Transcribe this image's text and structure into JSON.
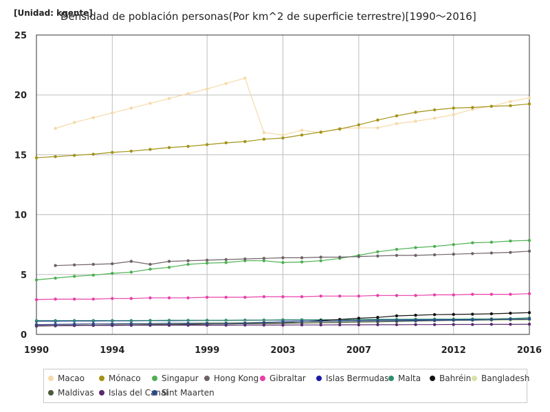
{
  "header": {
    "unit": "[Unidad: kgente]",
    "title": "Densidad de población personas(Por km^2 de superficie terrestre)[1990～2016]"
  },
  "chart_data": {
    "type": "line",
    "x_ticks": [
      1990,
      1994,
      1999,
      2003,
      2007,
      2012,
      2016
    ],
    "y_ticks": [
      0,
      5,
      10,
      15,
      20,
      25
    ],
    "xlim": [
      1990,
      2016
    ],
    "ylim": [
      0,
      25
    ],
    "grid": true,
    "legend_position": "bottom",
    "series": [
      {
        "name": "Macao",
        "color": "#f5d9a8",
        "x": [
          1991,
          1992,
          1993,
          1994,
          1995,
          1996,
          1997,
          1998,
          1999,
          2000,
          2001,
          2002,
          2003,
          2004,
          2005,
          2006,
          2007,
          2008,
          2009,
          2010,
          2011,
          2012,
          2013,
          2014,
          2015,
          2016
        ],
        "y": [
          17.2,
          17.7,
          18.1,
          18.5,
          18.9,
          19.3,
          19.7,
          20.1,
          20.5,
          20.95,
          21.4,
          16.85,
          16.65,
          17.05,
          16.85,
          17.2,
          17.25,
          17.25,
          17.6,
          17.8,
          18.05,
          18.35,
          18.8,
          19.05,
          19.45,
          19.75
        ]
      },
      {
        "name": "Mónaco",
        "color": "#a39215",
        "x": [
          1990,
          1991,
          1992,
          1993,
          1994,
          1995,
          1996,
          1997,
          1998,
          1999,
          2000,
          2001,
          2002,
          2003,
          2004,
          2005,
          2006,
          2007,
          2008,
          2009,
          2010,
          2011,
          2012,
          2013,
          2014,
          2015,
          2016
        ],
        "y": [
          14.75,
          14.85,
          14.95,
          15.05,
          15.2,
          15.3,
          15.45,
          15.6,
          15.7,
          15.85,
          16.0,
          16.1,
          16.3,
          16.4,
          16.65,
          16.9,
          17.15,
          17.5,
          17.9,
          18.25,
          18.55,
          18.75,
          18.9,
          18.95,
          19.05,
          19.1,
          19.25
        ]
      },
      {
        "name": "Singapur",
        "color": "#4caf50",
        "x": [
          1990,
          1991,
          1992,
          1993,
          1994,
          1995,
          1996,
          1997,
          1998,
          1999,
          2000,
          2001,
          2002,
          2003,
          2004,
          2005,
          2006,
          2007,
          2008,
          2009,
          2010,
          2011,
          2012,
          2013,
          2014,
          2015,
          2016
        ],
        "y": [
          4.55,
          4.7,
          4.85,
          4.95,
          5.1,
          5.2,
          5.45,
          5.6,
          5.85,
          5.95,
          6.0,
          6.15,
          6.15,
          6.0,
          6.05,
          6.15,
          6.35,
          6.6,
          6.9,
          7.1,
          7.25,
          7.35,
          7.5,
          7.65,
          7.7,
          7.8,
          7.85
        ]
      },
      {
        "name": "Hong Kong",
        "color": "#6e6268",
        "x": [
          1991,
          1992,
          1993,
          1994,
          1995,
          1996,
          1997,
          1998,
          1999,
          2000,
          2001,
          2002,
          2003,
          2004,
          2005,
          2006,
          2007,
          2008,
          2009,
          2010,
          2011,
          2012,
          2013,
          2014,
          2015,
          2016
        ],
        "y": [
          5.75,
          5.8,
          5.85,
          5.9,
          6.1,
          5.85,
          6.1,
          6.15,
          6.2,
          6.25,
          6.3,
          6.35,
          6.4,
          6.4,
          6.45,
          6.45,
          6.5,
          6.55,
          6.6,
          6.6,
          6.65,
          6.7,
          6.75,
          6.8,
          6.85,
          6.95
        ]
      },
      {
        "name": "Gibraltar",
        "color": "#e83fa8",
        "x": [
          1990,
          1991,
          1992,
          1993,
          1994,
          1995,
          1996,
          1997,
          1998,
          1999,
          2000,
          2001,
          2002,
          2003,
          2004,
          2005,
          2006,
          2007,
          2008,
          2009,
          2010,
          2011,
          2012,
          2013,
          2014,
          2015,
          2016
        ],
        "y": [
          2.9,
          2.95,
          2.95,
          2.95,
          3.0,
          3.0,
          3.05,
          3.05,
          3.05,
          3.1,
          3.1,
          3.1,
          3.15,
          3.15,
          3.15,
          3.2,
          3.2,
          3.2,
          3.25,
          3.25,
          3.25,
          3.3,
          3.3,
          3.35,
          3.35,
          3.35,
          3.4
        ]
      },
      {
        "name": "Islas Bermudas",
        "color": "#1a1aa6",
        "x": [
          1990,
          1991,
          1992,
          1993,
          1994,
          1995,
          1996,
          1997,
          1998,
          1999,
          2000,
          2001,
          2002,
          2003,
          2004,
          2005,
          2006,
          2007,
          2008,
          2009,
          2010,
          2011,
          2012,
          2013,
          2014,
          2015,
          2016
        ],
        "y": [
          1.1,
          1.1,
          1.12,
          1.12,
          1.13,
          1.13,
          1.15,
          1.15,
          1.16,
          1.17,
          1.17,
          1.18,
          1.19,
          1.2,
          1.2,
          1.21,
          1.21,
          1.22,
          1.22,
          1.22,
          1.22,
          1.22,
          1.23,
          1.23,
          1.23,
          1.23,
          1.23
        ]
      },
      {
        "name": "Malta",
        "color": "#2f8f6e",
        "x": [
          1990,
          1991,
          1992,
          1993,
          1994,
          1995,
          1996,
          1997,
          1998,
          1999,
          2000,
          2001,
          2002,
          2003,
          2004,
          2005,
          2006,
          2007,
          2008,
          2009,
          2010,
          2011,
          2012,
          2013,
          2014,
          2015,
          2016
        ],
        "y": [
          1.15,
          1.16,
          1.16,
          1.16,
          1.16,
          1.16,
          1.17,
          1.18,
          1.18,
          1.18,
          1.18,
          1.19,
          1.2,
          1.22,
          1.22,
          1.22,
          1.22,
          1.24,
          1.26,
          1.26,
          1.27,
          1.28,
          1.28,
          1.29,
          1.3,
          1.33,
          1.38
        ]
      },
      {
        "name": "Bahréin",
        "color": "#111111",
        "x": [
          1990,
          1991,
          1992,
          1993,
          1994,
          1995,
          1996,
          1997,
          1998,
          1999,
          2000,
          2001,
          2002,
          2003,
          2004,
          2005,
          2006,
          2007,
          2008,
          2009,
          2010,
          2011,
          2012,
          2013,
          2014,
          2015,
          2016
        ],
        "y": [
          0.7,
          0.72,
          0.74,
          0.76,
          0.77,
          0.79,
          0.8,
          0.82,
          0.84,
          0.86,
          0.88,
          0.9,
          0.93,
          0.96,
          1.05,
          1.15,
          1.25,
          1.35,
          1.42,
          1.55,
          1.6,
          1.65,
          1.67,
          1.69,
          1.72,
          1.77,
          1.82
        ]
      },
      {
        "name": "Bangladesh",
        "color": "#d6e2a8",
        "x": [
          1990,
          1991,
          1992,
          1993,
          1994,
          1995,
          1996,
          1997,
          1998,
          1999,
          2000,
          2001,
          2002,
          2003,
          2004,
          2005,
          2006,
          2007,
          2008,
          2009,
          2010,
          2011,
          2012,
          2013,
          2014,
          2015,
          2016
        ],
        "y": [
          0.82,
          0.84,
          0.86,
          0.88,
          0.9,
          0.92,
          0.93,
          0.95,
          0.96,
          0.98,
          1.0,
          1.01,
          1.03,
          1.04,
          1.05,
          1.06,
          1.08,
          1.09,
          1.1,
          1.11,
          1.13,
          1.14,
          1.15,
          1.16,
          1.17,
          1.18,
          1.2
        ]
      },
      {
        "name": "Maldivas",
        "color": "#4a5a3a",
        "x": [
          1990,
          1991,
          1992,
          1993,
          1994,
          1995,
          1996,
          1997,
          1998,
          1999,
          2000,
          2001,
          2002,
          2003,
          2004,
          2005,
          2006,
          2007,
          2008,
          2009,
          2010,
          2011,
          2012,
          2013,
          2014,
          2015,
          2016
        ],
        "y": [
          0.72,
          0.74,
          0.75,
          0.77,
          0.79,
          0.8,
          0.82,
          0.83,
          0.85,
          0.86,
          0.88,
          0.9,
          0.91,
          0.93,
          0.95,
          0.98,
          1.0,
          1.03,
          1.05,
          1.08,
          1.12,
          1.15,
          1.18,
          1.2,
          1.24,
          1.27,
          1.3
        ]
      },
      {
        "name": "Islas del Canal",
        "color": "#5a2a6e",
        "x": [
          1990,
          1991,
          1992,
          1993,
          1994,
          1995,
          1996,
          1997,
          1998,
          1999,
          2000,
          2001,
          2002,
          2003,
          2004,
          2005,
          2006,
          2007,
          2008,
          2009,
          2010,
          2011,
          2012,
          2013,
          2014,
          2015,
          2016
        ],
        "y": [
          0.74,
          0.74,
          0.75,
          0.75,
          0.75,
          0.76,
          0.76,
          0.76,
          0.77,
          0.77,
          0.77,
          0.78,
          0.78,
          0.78,
          0.79,
          0.79,
          0.8,
          0.8,
          0.81,
          0.81,
          0.82,
          0.82,
          0.83,
          0.83,
          0.84,
          0.84,
          0.85
        ]
      },
      {
        "name": "Sint Maarten",
        "color": "#2b4a8a",
        "x": [
          1990,
          1991,
          1992,
          1993,
          1994,
          1995,
          1996,
          1997,
          1998,
          1999,
          2000,
          2001,
          2002,
          2003,
          2004,
          2005,
          2006,
          2007,
          2008,
          2009,
          2010,
          2011,
          2012,
          2013,
          2014,
          2015,
          2016
        ],
        "y": [
          0.82,
          0.84,
          0.86,
          0.88,
          0.88,
          0.9,
          0.9,
          0.92,
          0.92,
          0.93,
          0.93,
          0.95,
          1.0,
          1.05,
          1.08,
          1.1,
          1.12,
          1.14,
          1.15,
          1.16,
          1.17,
          1.18,
          1.19,
          1.2,
          1.22,
          1.25,
          1.27
        ]
      }
    ]
  }
}
